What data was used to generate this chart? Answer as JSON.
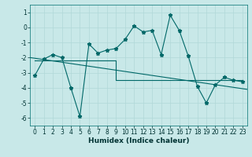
{
  "xlabel": "Humidex (Indice chaleur)",
  "ylabel": "",
  "background_color": "#c8e8e8",
  "grid_color": "#b0d8d8",
  "line_color": "#006868",
  "xlim": [
    -0.5,
    23.5
  ],
  "ylim": [
    -6.5,
    1.5
  ],
  "xticks": [
    0,
    1,
    2,
    3,
    4,
    5,
    6,
    7,
    8,
    9,
    10,
    11,
    12,
    13,
    14,
    15,
    16,
    17,
    18,
    19,
    20,
    21,
    22,
    23
  ],
  "yticks": [
    -6,
    -5,
    -4,
    -3,
    -2,
    -1,
    0,
    1
  ],
  "x": [
    0,
    1,
    2,
    3,
    4,
    5,
    6,
    7,
    8,
    9,
    10,
    11,
    12,
    13,
    14,
    15,
    16,
    17,
    18,
    19,
    20,
    21,
    22,
    23
  ],
  "y_main": [
    -3.2,
    -2.1,
    -1.8,
    -2.0,
    -4.0,
    -5.9,
    -1.1,
    -1.7,
    -1.5,
    -1.4,
    -0.8,
    0.1,
    -0.3,
    -0.2,
    -1.8,
    0.8,
    -0.2,
    -1.9,
    -3.9,
    -5.0,
    -3.8,
    -3.3,
    -3.5,
    -3.6
  ],
  "y_line1_x": [
    0,
    9,
    9,
    23
  ],
  "y_line1_y": [
    -2.2,
    -2.2,
    -3.5,
    -3.5
  ],
  "trend_x": [
    -0.5,
    23.5
  ],
  "trend_y": [
    -2.0,
    -4.1
  ],
  "xlabel_fontsize": 6.5,
  "xlabel_fontweight": "bold",
  "tick_fontsize": 5.5,
  "ylabel_fontsize": 6
}
